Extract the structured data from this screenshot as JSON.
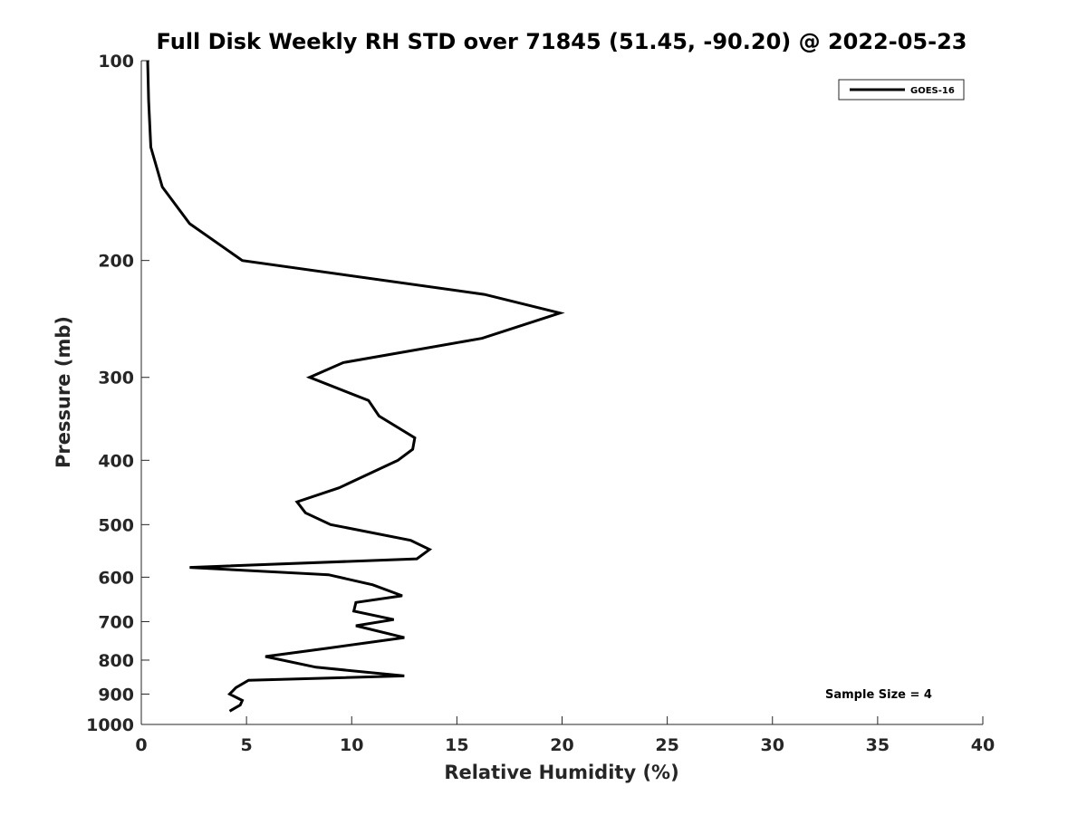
{
  "chart_data": {
    "type": "line",
    "title": "Full Disk Weekly RH STD over 71845 (51.45, -90.20) @ 2022-05-23",
    "xlabel": "Relative Humidity (%)",
    "ylabel": "Pressure (mb)",
    "xlim": [
      0,
      40
    ],
    "ylim": [
      100,
      1000
    ],
    "yscale": "log",
    "yreversed": true,
    "xticks": [
      0,
      5,
      10,
      15,
      20,
      25,
      30,
      35,
      40
    ],
    "yticks": [
      100,
      200,
      300,
      400,
      500,
      600,
      700,
      800,
      900,
      1000
    ],
    "grid": false,
    "legend": {
      "position": "top-right",
      "entries": [
        "GOES-16"
      ]
    },
    "annotation": "Sample Size = 4",
    "series": [
      {
        "name": "GOES-16",
        "color": "#000000",
        "x": [
          0.3,
          0.35,
          0.45,
          1.0,
          2.3,
          4.8,
          16.3,
          19.9,
          16.2,
          9.6,
          8.0,
          10.8,
          11.3,
          13.0,
          12.9,
          12.2,
          9.4,
          7.4,
          7.8,
          9.0,
          12.8,
          13.7,
          13.1,
          2.3,
          8.9,
          11.0,
          12.4,
          10.2,
          10.1,
          12.0,
          10.2,
          12.5,
          8.8,
          5.9,
          8.3,
          12.5,
          5.1,
          4.5,
          4.2,
          4.8,
          4.7,
          4.2
        ],
        "y": [
          100,
          115,
          135,
          155,
          176,
          200,
          225,
          240,
          262,
          285,
          300,
          325,
          343,
          370,
          385,
          400,
          440,
          462,
          480,
          500,
          528,
          545,
          563,
          580,
          595,
          616,
          640,
          655,
          675,
          695,
          710,
          740,
          768,
          790,
          820,
          845,
          858,
          880,
          900,
          920,
          935,
          955
        ]
      }
    ]
  }
}
